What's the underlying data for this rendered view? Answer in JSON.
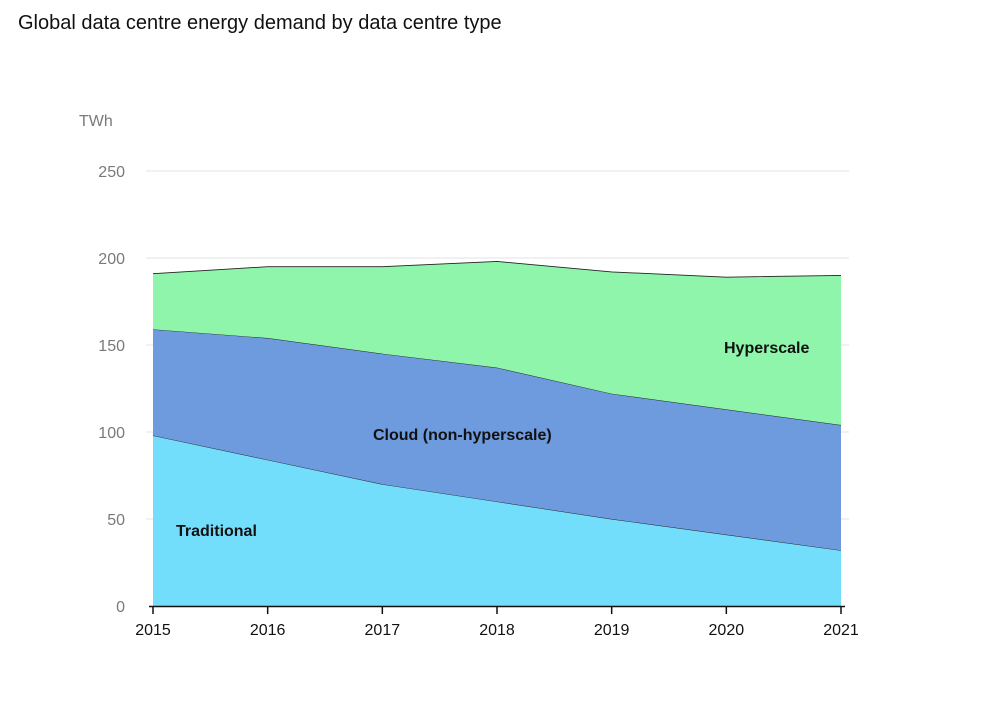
{
  "title": "Global data centre energy demand by data centre type",
  "chart_data": {
    "type": "area",
    "stacked": true,
    "title": "Global data centre energy demand by data centre type",
    "y_unit": "TWh",
    "xlabel": "",
    "ylabel": "",
    "ylim": [
      0,
      250
    ],
    "y_ticks": [
      0,
      50,
      100,
      150,
      200,
      250
    ],
    "x": [
      "2015",
      "2016",
      "2017",
      "2018",
      "2019",
      "2020",
      "2021"
    ],
    "grid": true,
    "series": [
      {
        "name": "Traditional",
        "color": "#73DEFC",
        "values": [
          98,
          84,
          70,
          60,
          50,
          41,
          32
        ]
      },
      {
        "name": "Cloud (non-hyperscale)",
        "color": "#6E9ADE",
        "values": [
          61,
          70,
          75,
          77,
          72,
          72,
          72
        ]
      },
      {
        "name": "Hyperscale",
        "color": "#8EF5AA",
        "values": [
          32,
          41,
          50,
          61,
          70,
          76,
          86
        ]
      }
    ]
  }
}
